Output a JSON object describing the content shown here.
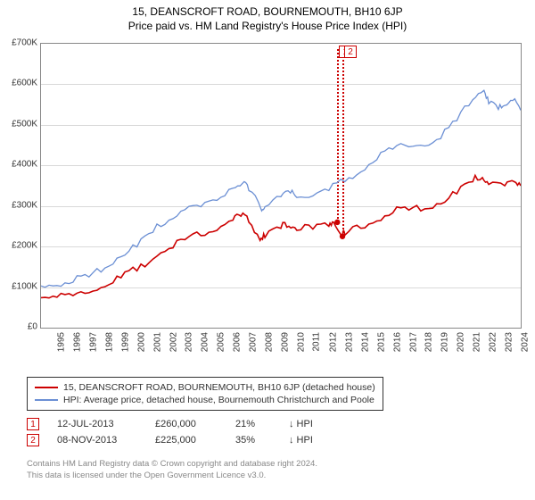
{
  "title_line1": "15, DEANSCROFT ROAD, BOURNEMOUTH, BH10 6JP",
  "title_line2": "Price paid vs. HM Land Registry's House Price Index (HPI)",
  "chart": {
    "type": "line",
    "background_color": "#ffffff",
    "grid_color": "#d9d9d9",
    "border_color": "#888888",
    "x": {
      "min": 1995,
      "max": 2025,
      "ticks": [
        1995,
        1996,
        1997,
        1998,
        1999,
        2000,
        2001,
        2002,
        2003,
        2004,
        2005,
        2006,
        2007,
        2008,
        2009,
        2010,
        2011,
        2012,
        2013,
        2014,
        2015,
        2016,
        2017,
        2018,
        2019,
        2020,
        2021,
        2022,
        2023,
        2024,
        2025
      ],
      "label_fontsize": 10,
      "rotation_deg": -90
    },
    "y": {
      "min": 0,
      "max": 700000,
      "tick_step": 100000,
      "labels": [
        "£0",
        "£100K",
        "£200K",
        "£300K",
        "£400K",
        "£500K",
        "£600K",
        "£700K"
      ],
      "label_fontsize": 10
    },
    "series": [
      {
        "name": "15, DEANSCROFT ROAD, BOURNEMOUTH, BH10 6JP (detached house)",
        "color": "#cc0000",
        "line_width": 1.6,
        "data": [
          [
            1995,
            74000
          ],
          [
            1996,
            75000
          ],
          [
            1997,
            79000
          ],
          [
            1998,
            86000
          ],
          [
            1999,
            101000
          ],
          [
            2000,
            123000
          ],
          [
            2001,
            140000
          ],
          [
            2002,
            169000
          ],
          [
            2003,
            195000
          ],
          [
            2004,
            217000
          ],
          [
            2005,
            227000
          ],
          [
            2006,
            240000
          ],
          [
            2007,
            265000
          ],
          [
            2007.5,
            275000
          ],
          [
            2008,
            260000
          ],
          [
            2008.7,
            215000
          ],
          [
            2009,
            222000
          ],
          [
            2010,
            245000
          ],
          [
            2010.5,
            250000
          ],
          [
            2011,
            240000
          ],
          [
            2012,
            243000
          ],
          [
            2013,
            250000
          ],
          [
            2013.3,
            260000
          ],
          [
            2013.85,
            225000
          ],
          [
            2014,
            228000
          ],
          [
            2015,
            245000
          ],
          [
            2016,
            263000
          ],
          [
            2017,
            283000
          ],
          [
            2018,
            290000
          ],
          [
            2019,
            293000
          ],
          [
            2020,
            305000
          ],
          [
            2021,
            330000
          ],
          [
            2022,
            360000
          ],
          [
            2022.6,
            370000
          ],
          [
            2023,
            353000
          ],
          [
            2024,
            350000
          ],
          [
            2024.6,
            360000
          ],
          [
            2025,
            350000
          ]
        ]
      },
      {
        "name": "HPI: Average price, detached house, Bournemouth Christchurch and Poole",
        "color": "#6b8fd4",
        "line_width": 1.3,
        "data": [
          [
            1995,
            103000
          ],
          [
            1996,
            104000
          ],
          [
            1997,
            112000
          ],
          [
            1998,
            125000
          ],
          [
            1999,
            147000
          ],
          [
            2000,
            175000
          ],
          [
            2001,
            199000
          ],
          [
            2002,
            235000
          ],
          [
            2003,
            265000
          ],
          [
            2004,
            291000
          ],
          [
            2005,
            298000
          ],
          [
            2006,
            314000
          ],
          [
            2007,
            344000
          ],
          [
            2007.6,
            356000
          ],
          [
            2008,
            338000
          ],
          [
            2008.8,
            288000
          ],
          [
            2009,
            298000
          ],
          [
            2010,
            323000
          ],
          [
            2010.6,
            332000
          ],
          [
            2011,
            321000
          ],
          [
            2012,
            325000
          ],
          [
            2013,
            338000
          ],
          [
            2014,
            360000
          ],
          [
            2015,
            384000
          ],
          [
            2016,
            414000
          ],
          [
            2017,
            440000
          ],
          [
            2018,
            446000
          ],
          [
            2019,
            448000
          ],
          [
            2020,
            466000
          ],
          [
            2021,
            510000
          ],
          [
            2022,
            562000
          ],
          [
            2022.7,
            585000
          ],
          [
            2023,
            552000
          ],
          [
            2023.6,
            538000
          ],
          [
            2024,
            548000
          ],
          [
            2024.5,
            560000
          ],
          [
            2025,
            536000
          ]
        ]
      }
    ],
    "sale_markers": [
      {
        "n": "1",
        "year_frac": 2013.53,
        "price": 260000,
        "dot_color": "#cc0000"
      },
      {
        "n": "2",
        "year_frac": 2013.85,
        "price": 225000,
        "dot_color": "#cc0000"
      }
    ]
  },
  "legend": {
    "border_color": "#333333",
    "rows": [
      {
        "color": "#cc0000",
        "label": "15, DEANSCROFT ROAD, BOURNEMOUTH, BH10 6JP (detached house)"
      },
      {
        "color": "#6b8fd4",
        "label": "HPI: Average price, detached house, Bournemouth Christchurch and Poole"
      }
    ]
  },
  "sales_table": {
    "rows": [
      {
        "n": "1",
        "date": "12-JUL-2013",
        "price": "£260,000",
        "pct": "21%",
        "direction": "↓ HPI"
      },
      {
        "n": "2",
        "date": "08-NOV-2013",
        "price": "£225,000",
        "pct": "35%",
        "direction": "↓ HPI"
      }
    ]
  },
  "credits": {
    "line1": "Contains HM Land Registry data © Crown copyright and database right 2024.",
    "line2": "This data is licensed under the Open Government Licence v3.0."
  }
}
